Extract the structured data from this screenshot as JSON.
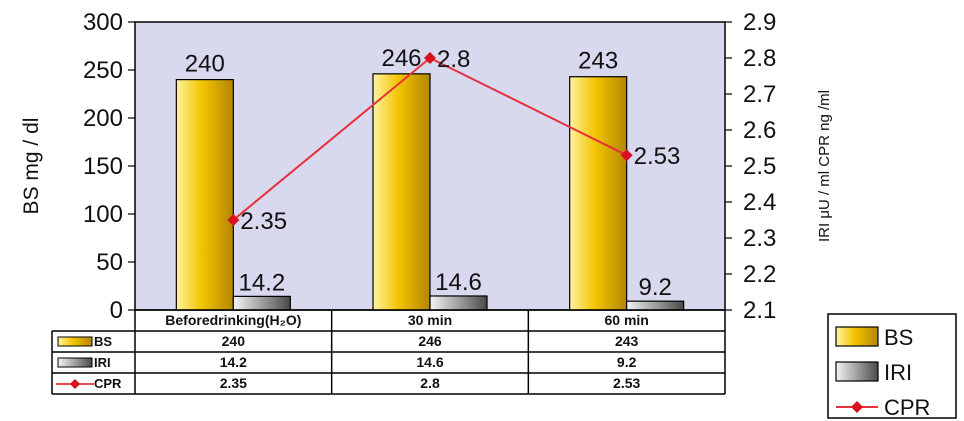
{
  "chart_data": {
    "type": "bar",
    "categories": [
      "Beforedrinking(H₂O)",
      "30 min",
      "60 min"
    ],
    "series": [
      {
        "name": "BS",
        "type": "bar",
        "axis": "left",
        "values": [
          240,
          246,
          243
        ],
        "labels": [
          "240",
          "246",
          "243"
        ],
        "table_values": [
          "240",
          "246",
          "243"
        ],
        "color": "#f0c000"
      },
      {
        "name": "IRI",
        "type": "bar",
        "axis": "left",
        "values": [
          14.2,
          14.6,
          9.2
        ],
        "labels": [
          "14.2",
          "14.6",
          "9.2"
        ],
        "table_values": [
          "14.2",
          "14.6",
          "9.2"
        ],
        "color": "#a0a0a0"
      },
      {
        "name": "CPR",
        "type": "line",
        "axis": "right",
        "values": [
          2.35,
          2.8,
          2.53
        ],
        "labels": [
          "2.35",
          "2.8",
          "2.53"
        ],
        "table_values": [
          "2.35",
          "2.8",
          "2.53"
        ],
        "color": "#e8303a"
      }
    ],
    "ylabel": "BS mg / dl",
    "y2label": "IRI μU / ml CPR ng /ml",
    "ylim": [
      0,
      300
    ],
    "y2lim": [
      2.1,
      2.9
    ],
    "yticks": [
      "0",
      "50",
      "100",
      "150",
      "200",
      "250",
      "300"
    ],
    "y2ticks": [
      "2.1",
      "2.2",
      "2.3",
      "2.4",
      "2.5",
      "2.6",
      "2.7",
      "2.8",
      "2.9"
    ],
    "plot_background": "#d8d8ee",
    "legend_position": "bottom-right",
    "has_data_table": true
  }
}
